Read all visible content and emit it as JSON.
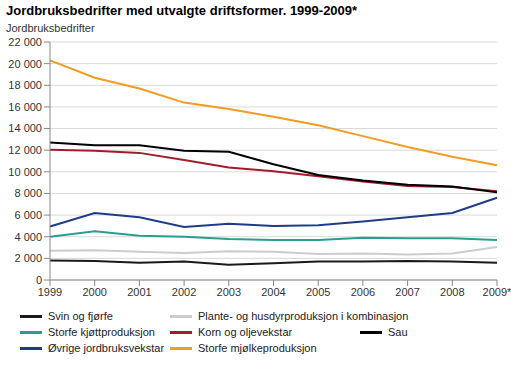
{
  "chart_data": {
    "type": "line",
    "title": "Jordbruksbedrifter med utvalgte driftsformer. 1999-2009*",
    "y_label": "Jordbruksbedrifter",
    "categories": [
      "1999",
      "2000",
      "2001",
      "2002",
      "2003",
      "2004",
      "2005",
      "2006",
      "2007",
      "2008",
      "2009*"
    ],
    "ylim": [
      0,
      22000
    ],
    "yticks": [
      0,
      {
        "value": 2000,
        "label": "2 000"
      },
      {
        "value": 4000,
        "label": "4 000"
      },
      {
        "value": 6000,
        "label": "6 000"
      },
      {
        "value": 8000,
        "label": "8 000"
      },
      {
        "value": 10000,
        "label": "10 000"
      },
      {
        "value": 12000,
        "label": "12 000"
      },
      {
        "value": 14000,
        "label": "14 000"
      },
      {
        "value": 16000,
        "label": "16 000"
      },
      {
        "value": 18000,
        "label": "18 000"
      },
      {
        "value": 20000,
        "label": "20 000"
      },
      {
        "value": 22000,
        "label": "22 000"
      }
    ],
    "grid": true,
    "series": [
      {
        "name": "Svin og fjørfe",
        "color": "#1a1a1a",
        "values": [
          1800,
          1750,
          1600,
          1700,
          1400,
          1550,
          1700,
          1700,
          1750,
          1700,
          1600
        ]
      },
      {
        "name": "Plante- og husdyrproduksjon i kombinasjon",
        "color": "#cccccc",
        "values": [
          2700,
          2750,
          2600,
          2500,
          2650,
          2600,
          2400,
          2450,
          2350,
          2450,
          3050
        ]
      },
      {
        "name": "Storfe kjøttproduksjon",
        "color": "#2a9d8f",
        "values": [
          4000,
          4500,
          4100,
          4000,
          3800,
          3700,
          3700,
          3900,
          3850,
          3850,
          3700
        ]
      },
      {
        "name": "Korn og oljevekstar",
        "color": "#a11d2b",
        "values": [
          12050,
          11950,
          11750,
          11100,
          10400,
          10050,
          9600,
          9100,
          8700,
          8600,
          8200
        ]
      },
      {
        "name": "Sau",
        "color": "#000000",
        "values": [
          12700,
          12450,
          12450,
          11950,
          11850,
          10700,
          9700,
          9200,
          8800,
          8650,
          8100
        ]
      },
      {
        "name": "Øvrige jordbruksvekstar",
        "color": "#1f3c88",
        "values": [
          4950,
          6200,
          5800,
          4900,
          5200,
          5000,
          5050,
          5400,
          5800,
          6200,
          7600
        ]
      },
      {
        "name": "Storfe mjølkeproduksjon",
        "color": "#f39c24",
        "values": [
          20300,
          18700,
          17700,
          16400,
          15800,
          15100,
          14300,
          13300,
          12300,
          11400,
          10600
        ]
      }
    ]
  }
}
